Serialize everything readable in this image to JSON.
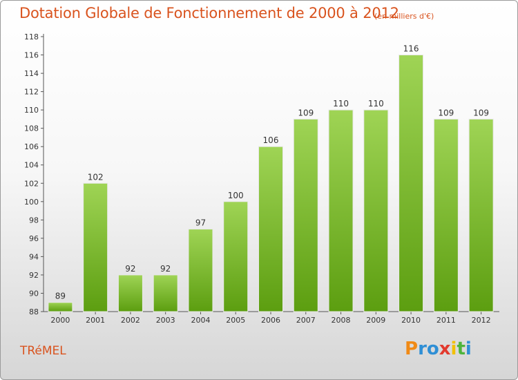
{
  "header": {
    "title": "Dotation Globale de Fonctionnement de 2000 à 2012",
    "subtitle": "(en milliers d'€)"
  },
  "footer": {
    "commune": "TRéMEL",
    "logo_letters": [
      "P",
      "r",
      "o",
      "x",
      "i",
      "t",
      "i"
    ],
    "logo_colors": [
      "#f08a16",
      "#2f8fd5",
      "#2f8fd5",
      "#e23a2e",
      "#f2c000",
      "#4db43c",
      "#2f8fd5"
    ]
  },
  "colors": {
    "bar_top": "#9fd455",
    "bar_bottom": "#5c9e10",
    "accent": "#d9531e"
  },
  "chart_data": {
    "type": "bar",
    "categories": [
      "2000",
      "2001",
      "2002",
      "2003",
      "2004",
      "2005",
      "2006",
      "2007",
      "2008",
      "2009",
      "2010",
      "2011",
      "2012"
    ],
    "values": [
      89,
      102,
      92,
      92,
      97,
      100,
      106,
      109,
      110,
      110,
      116,
      109,
      109
    ],
    "data_labels": [
      "89",
      "102",
      "92",
      "92",
      "97",
      "100",
      "106",
      "109",
      "110",
      "110",
      "116",
      "109",
      "109"
    ],
    "yticks": [
      "88",
      "90",
      "92",
      "94",
      "96",
      "98",
      "100",
      "102",
      "104",
      "106",
      "108",
      "110",
      "112",
      "114",
      "116",
      "118"
    ],
    "ylim": [
      88,
      118
    ],
    "grid": false,
    "legend": "none"
  }
}
